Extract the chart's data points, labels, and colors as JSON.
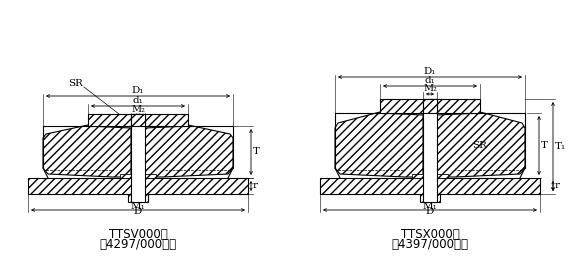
{
  "bg_color": "#ffffff",
  "line_color": "#000000",
  "title1_line1": "TTSV000型",
  "title1_line2": "（4297/000型）",
  "title2_line1": "TTSX000型",
  "title2_line2": "（4397/000型）",
  "font_size": 8.5,
  "dim_font_size": 7.5
}
